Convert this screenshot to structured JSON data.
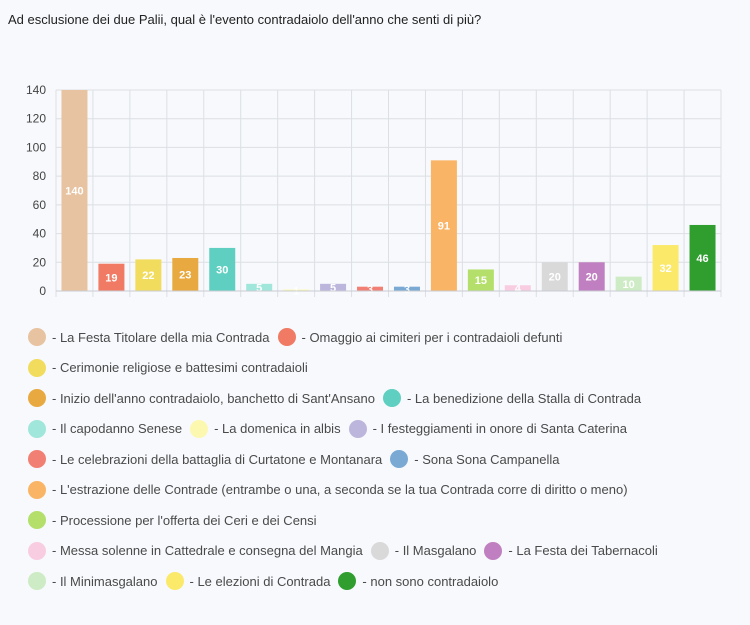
{
  "question": "Ad esclusione dei due Palii, qual è l'evento contradaiolo dell'anno che senti di più?",
  "chart_data": {
    "type": "bar",
    "title": "",
    "xlabel": "",
    "ylabel": "",
    "ylim": [
      0,
      140
    ],
    "yticks": [
      0,
      20,
      40,
      60,
      80,
      100,
      120,
      140
    ],
    "grid": true,
    "legend_position": "bottom",
    "series": [
      {
        "name": "La Festa Titolare della mia Contrada",
        "value": 140,
        "color": "#e8c3a1",
        "label_color": "#ffffff"
      },
      {
        "name": "Omaggio ai cimiteri per i contradaioli defunti",
        "value": 19,
        "color": "#f07a63",
        "label_color": "#ffffff"
      },
      {
        "name": "Cerimonie religiose e battesimi contradaioli",
        "value": 22,
        "color": "#f2dc5d",
        "label_color": "#ffffff"
      },
      {
        "name": "Inizio dell'anno contradaiolo, banchetto di Sant'Ansano",
        "value": 23,
        "color": "#e8aa40",
        "label_color": "#ffffff"
      },
      {
        "name": "La benedizione della Stalla di Contrada",
        "value": 30,
        "color": "#5ecfc0",
        "label_color": "#ffffff"
      },
      {
        "name": "Il capodanno Senese",
        "value": 5,
        "color": "#a0e6da",
        "label_color": "#ffffff"
      },
      {
        "name": "La domenica in albis",
        "value": 1,
        "color": "#fdf8b0",
        "label_color": "#ffffff"
      },
      {
        "name": "I festeggiamenti in onore di Santa Caterina",
        "value": 5,
        "color": "#bcb6dc",
        "label_color": "#ffffff"
      },
      {
        "name": "Le celebrazioni della battaglia di Curtatone e Montanara",
        "value": 3,
        "color": "#f27f73",
        "label_color": "#ffffff"
      },
      {
        "name": "Sona Sona Campanella",
        "value": 3,
        "color": "#7aaad4",
        "label_color": "#ffffff"
      },
      {
        "name": "L'estrazione delle Contrade (entrambe o una, a seconda se la tua Contrada corre di diritto o meno)",
        "value": 91,
        "color": "#fab466",
        "label_color": "#ffffff"
      },
      {
        "name": "Processione per l'offerta dei Ceri e dei Censi",
        "value": 15,
        "color": "#b3df6a",
        "label_color": "#ffffff"
      },
      {
        "name": "Messa solenne in Cattedrale e consegna del Mangia",
        "value": 4,
        "color": "#f9cde1",
        "label_color": "#ffffff"
      },
      {
        "name": "Il Masgalano",
        "value": 20,
        "color": "#d9d9d9",
        "label_color": "#ffffff"
      },
      {
        "name": "La Festa dei Tabernacoli",
        "value": 20,
        "color": "#bf7fc0",
        "label_color": "#ffffff"
      },
      {
        "name": "Il Minimasgalano",
        "value": 10,
        "color": "#cdebc4",
        "label_color": "#ffffff"
      },
      {
        "name": "Le elezioni di Contrada",
        "value": 32,
        "color": "#fbe96a",
        "label_color": "#ffffff"
      },
      {
        "name": "non sono contradaiolo",
        "value": 46,
        "color": "#2f9e2f",
        "label_color": "#ffffff"
      }
    ]
  },
  "legend_rows": [
    [
      0,
      1
    ],
    [
      2
    ],
    [
      3,
      4
    ],
    [
      5,
      6,
      7
    ],
    [
      8,
      9
    ],
    [
      10
    ],
    [
      11
    ],
    [
      12,
      13,
      14
    ],
    [
      15,
      16,
      17
    ]
  ],
  "legend_prefix": "- "
}
